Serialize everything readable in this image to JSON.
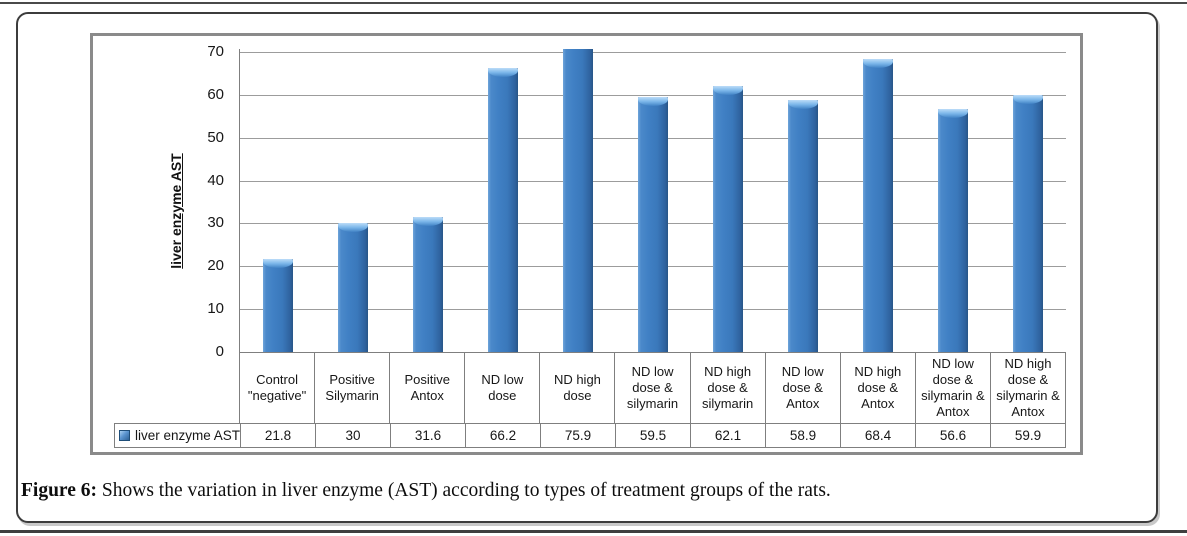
{
  "chart_data": {
    "type": "bar",
    "title": "",
    "xlabel": "",
    "ylabel": "liver enzyme AST",
    "ylim": [
      0,
      70
    ],
    "ytick_step": 10,
    "ytick_labels": [
      "0",
      "10",
      "20",
      "30",
      "40",
      "50",
      "60",
      "70"
    ],
    "grid": "horizontal gridlines every 10 units",
    "legend_position": "data-table key cell, left of value row",
    "categories": [
      "Control \"negative\"",
      "Positive Silymarin",
      "Positive Antox",
      "ND low dose",
      "ND high dose",
      "ND low dose & silymarin",
      "ND high dose & silymarin",
      "ND low dose & Antox",
      "ND high dose & Antox",
      "ND low dose & silymarin & Antox",
      "ND high dose & silymarin & Antox"
    ],
    "category_lines": [
      [
        "Control",
        "\"negative\""
      ],
      [
        "Positive",
        "Silymarin"
      ],
      [
        "Positive",
        "Antox"
      ],
      [
        "ND low",
        "dose"
      ],
      [
        "ND high",
        "dose"
      ],
      [
        "ND low",
        "dose &",
        "silymarin"
      ],
      [
        "ND high",
        "dose &",
        "silymarin"
      ],
      [
        "ND low",
        "dose &",
        "Antox"
      ],
      [
        "ND high",
        "dose &",
        "Antox"
      ],
      [
        "ND low",
        "dose &",
        "silymarin &",
        "Antox"
      ],
      [
        "ND high",
        "dose &",
        "silymarin &",
        "Antox"
      ]
    ],
    "series": [
      {
        "name": "liver enzyme AST",
        "values": [
          21.8,
          30,
          31.6,
          66.2,
          75.9,
          59.5,
          62.1,
          58.9,
          68.4,
          56.6,
          59.9
        ],
        "display_values": [
          "21.8",
          "30",
          "31.6",
          "66.2",
          "75.9",
          "59.5",
          "62.1",
          "58.9",
          "68.4",
          "56.6",
          "59.9"
        ],
        "color": "#3E7DC1"
      }
    ],
    "bar_clipped_at_axis_max": "75.9 bar is cut off at top of plot (axis max 70)"
  },
  "figure_caption": {
    "label": "Figure 6:",
    "text": "Shows the variation in liver enzyme (AST) according to types of treatment groups of the rats."
  },
  "colors": {
    "bar_main": "#3E7DC1",
    "bar_highlight": "#8FC0EE",
    "bar_shadow": "#2A5C93",
    "gridline": "#9C9C9C",
    "axis_and_table_border": "#7F7F7F",
    "chart_frame_border": "#8A8A8A",
    "text": "#1A1A1A"
  }
}
